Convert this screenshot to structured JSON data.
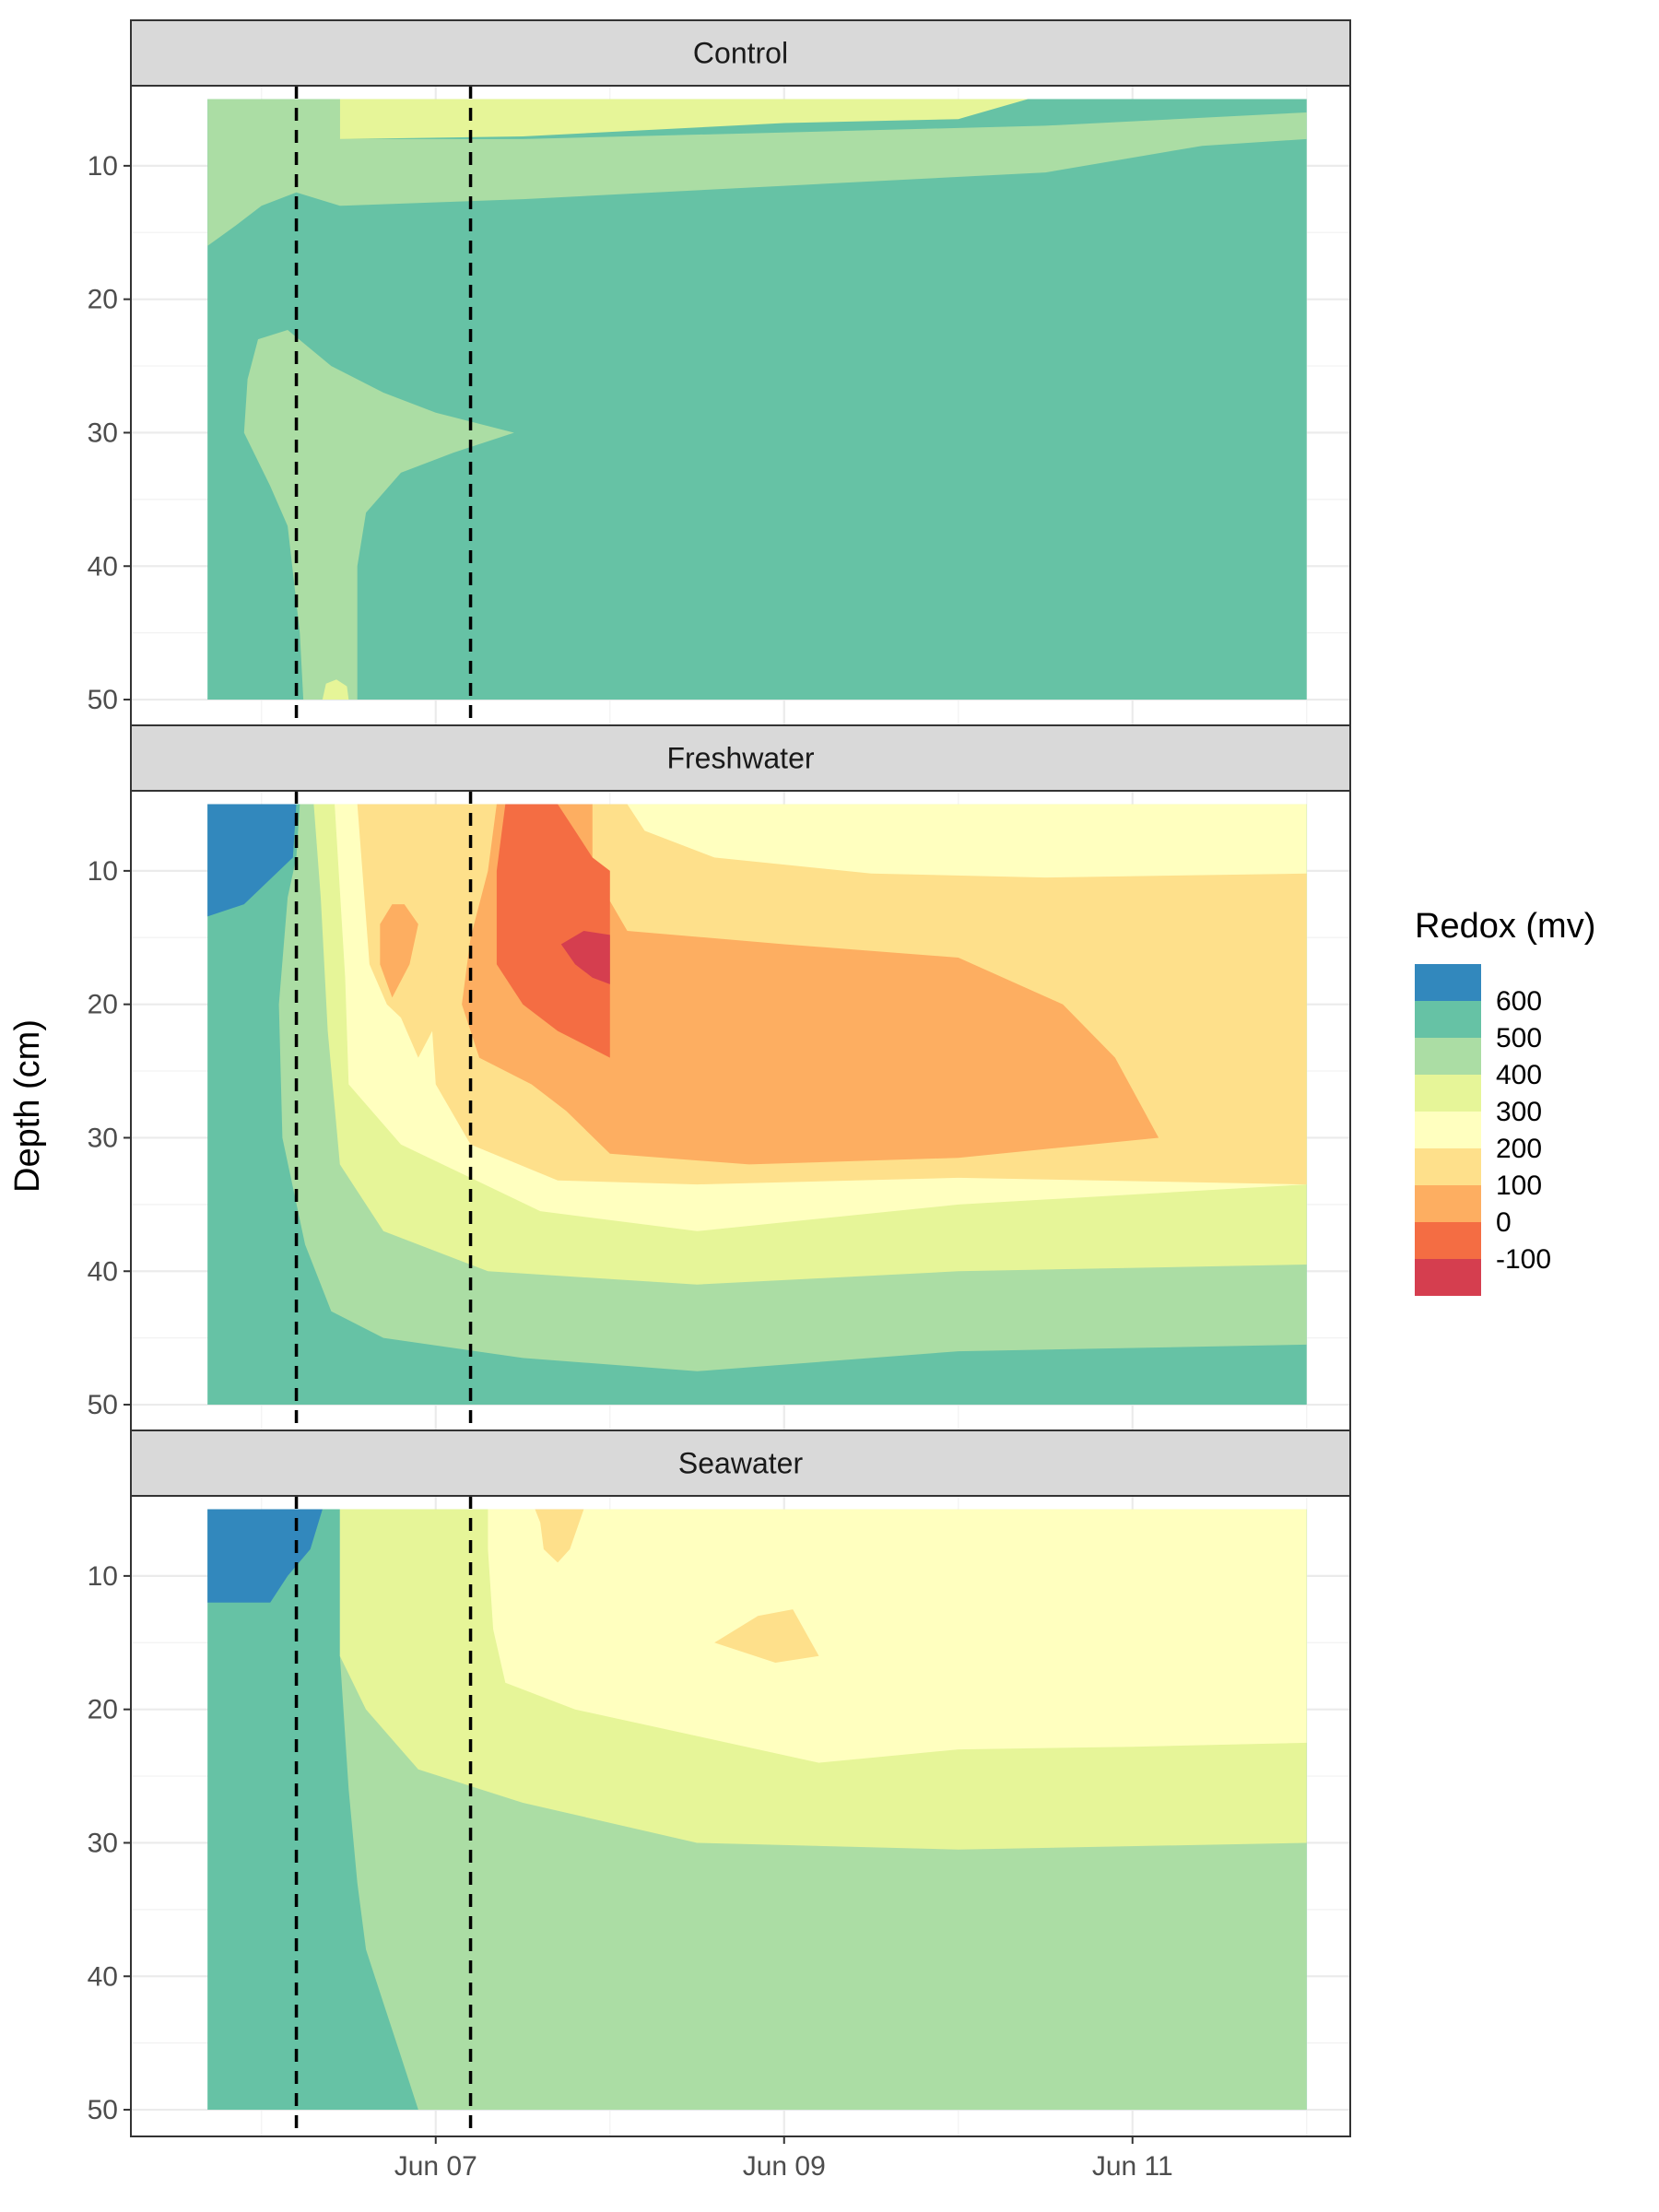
{
  "chart_data": {
    "type": "filled-contour",
    "ylabel": "Depth (cm)",
    "xlabel": "",
    "x_domain_days": [
      -1.75,
      5.25
    ],
    "x_ticks": [
      {
        "label": "Jun 07",
        "day": 0
      },
      {
        "label": "Jun 09",
        "day": 2
      },
      {
        "label": "Jun 11",
        "day": 4
      }
    ],
    "ylim": [
      4,
      52
    ],
    "y_reversed": true,
    "y_ticks": [
      10,
      20,
      30,
      40,
      50
    ],
    "data_x_range_days": [
      -1.31,
      5.0
    ],
    "data_y_range_cm": [
      5,
      50
    ],
    "vlines_days": [
      -0.8,
      0.2
    ],
    "vline_style": "dashed",
    "legend": {
      "title": "Redox (mv)",
      "position": "right",
      "labels": [
        "600",
        "500",
        "400",
        "300",
        "200",
        "100",
        "0",
        "-100"
      ],
      "colors": [
        "#3288bd",
        "#66c2a5",
        "#abdda4",
        "#e6f598",
        "#ffffbf",
        "#fee08b",
        "#fdae61",
        "#f46d43",
        "#d53e4f"
      ]
    },
    "panels": [
      {
        "label": "Control",
        "background": "#66c2a5",
        "regions": [
          {
            "color": "#abdda4",
            "points": [
              [
                -1.31,
                5
              ],
              [
                -0.55,
                5
              ],
              [
                -0.55,
                8
              ],
              [
                0.5,
                8
              ],
              [
                2,
                7.5
              ],
              [
                3.5,
                7
              ],
              [
                5,
                6
              ],
              [
                5,
                8
              ],
              [
                4.4,
                8.5
              ],
              [
                3.5,
                10.5
              ],
              [
                2,
                11.5
              ],
              [
                0.5,
                12.5
              ],
              [
                -0.55,
                13
              ],
              [
                -0.8,
                12
              ],
              [
                -1.0,
                13
              ],
              [
                -1.15,
                14.5
              ],
              [
                -1.31,
                16
              ]
            ]
          },
          {
            "color": "#e6f598",
            "points": [
              [
                -0.55,
                5
              ],
              [
                3.4,
                5
              ],
              [
                3.0,
                6.5
              ],
              [
                2,
                6.8
              ],
              [
                0.5,
                7.8
              ],
              [
                -0.55,
                8
              ]
            ]
          },
          {
            "color": "#abdda4",
            "points": [
              [
                -1.02,
                23
              ],
              [
                -0.85,
                22.3
              ],
              [
                -0.6,
                25
              ],
              [
                -0.3,
                27
              ],
              [
                0,
                28.5
              ],
              [
                0.45,
                30
              ],
              [
                0.1,
                31.5
              ],
              [
                -0.2,
                33
              ],
              [
                -0.4,
                36
              ],
              [
                -0.45,
                40
              ],
              [
                -0.45,
                50
              ],
              [
                -0.76,
                50
              ],
              [
                -0.78,
                45
              ],
              [
                -0.85,
                37
              ],
              [
                -0.95,
                34
              ],
              [
                -1.1,
                30
              ],
              [
                -1.08,
                26
              ]
            ]
          },
          {
            "color": "#e6f598",
            "points": [
              [
                -0.65,
                50
              ],
              [
                -0.63,
                48.8
              ],
              [
                -0.57,
                48.5
              ],
              [
                -0.51,
                49
              ],
              [
                -0.5,
                50
              ]
            ]
          }
        ]
      },
      {
        "label": "Freshwater",
        "background": "#66c2a5",
        "regions": [
          {
            "color": "#3288bd",
            "points": [
              [
                -1.33,
                5
              ],
              [
                -0.8,
                5
              ],
              [
                -0.82,
                9
              ],
              [
                -0.98,
                11
              ],
              [
                -1.1,
                12.5
              ],
              [
                -1.33,
                13.5
              ]
            ]
          },
          {
            "color": "#abdda4",
            "points": [
              [
                -0.78,
                5
              ],
              [
                5,
                5
              ],
              [
                5,
                45.5
              ],
              [
                3,
                46
              ],
              [
                1.5,
                47.5
              ],
              [
                0.5,
                46.5
              ],
              [
                -0.3,
                45
              ],
              [
                -0.6,
                43
              ],
              [
                -0.75,
                38
              ],
              [
                -0.88,
                30
              ],
              [
                -0.9,
                20
              ],
              [
                -0.85,
                12
              ],
              [
                -0.8,
                9
              ]
            ]
          },
          {
            "color": "#e6f598",
            "points": [
              [
                -0.7,
                5
              ],
              [
                5,
                5
              ],
              [
                5,
                39.5
              ],
              [
                3,
                40
              ],
              [
                1.5,
                41
              ],
              [
                0.3,
                40
              ],
              [
                -0.3,
                37
              ],
              [
                -0.55,
                32
              ],
              [
                -0.62,
                22
              ],
              [
                -0.66,
                12
              ]
            ]
          },
          {
            "color": "#ffffbf",
            "points": [
              [
                -0.58,
                5
              ],
              [
                5,
                5
              ],
              [
                5,
                33.5
              ],
              [
                3,
                35
              ],
              [
                1.5,
                37
              ],
              [
                0.6,
                35.5
              ],
              [
                0.2,
                33
              ],
              [
                -0.2,
                30.5
              ],
              [
                -0.5,
                26
              ],
              [
                -0.52,
                18
              ]
            ]
          },
          {
            "color": "#fee08b",
            "points": [
              [
                -0.45,
                5
              ],
              [
                0.2,
                5
              ],
              [
                0.6,
                5
              ],
              [
                0.5,
                7.5
              ],
              [
                0.35,
                11
              ],
              [
                0.25,
                14
              ],
              [
                0.05,
                18
              ],
              [
                -0.02,
                22
              ],
              [
                -0.1,
                24
              ],
              [
                -0.15,
                22.5
              ],
              [
                -0.2,
                21
              ],
              [
                -0.28,
                20
              ],
              [
                -0.38,
                17
              ]
            ]
          },
          {
            "color": "#fee08b",
            "points": [
              [
                0.2,
                5
              ],
              [
                1.1,
                5
              ],
              [
                1.2,
                7
              ],
              [
                1.6,
                9
              ],
              [
                2.5,
                10.2
              ],
              [
                3.5,
                10.5
              ],
              [
                5,
                10.2
              ],
              [
                5,
                33.5
              ],
              [
                3,
                33
              ],
              [
                1.5,
                33.5
              ],
              [
                0.7,
                33.2
              ],
              [
                0.2,
                30.5
              ],
              [
                0.0,
                26
              ],
              [
                -0.03,
                20
              ],
              [
                0.05,
                15
              ],
              [
                0.15,
                10
              ]
            ]
          },
          {
            "color": "#fdae61",
            "points": [
              [
                -0.18,
                12.5
              ],
              [
                -0.1,
                14
              ],
              [
                -0.15,
                17
              ],
              [
                -0.25,
                19.5
              ],
              [
                -0.32,
                17
              ],
              [
                -0.32,
                14
              ],
              [
                -0.25,
                12.5
              ]
            ]
          },
          {
            "color": "#fdae61",
            "points": [
              [
                0.35,
                5
              ],
              [
                0.9,
                5
              ],
              [
                0.9,
                10
              ],
              [
                1.1,
                14.5
              ],
              [
                2,
                15.5
              ],
              [
                3,
                16.5
              ],
              [
                3.6,
                20
              ],
              [
                3.9,
                24
              ],
              [
                4.15,
                30
              ],
              [
                3,
                31.5
              ],
              [
                1.8,
                32
              ],
              [
                1.0,
                31.2
              ],
              [
                0.75,
                28
              ],
              [
                0.55,
                26
              ],
              [
                0.25,
                24
              ],
              [
                0.15,
                20
              ],
              [
                0.2,
                15
              ],
              [
                0.3,
                10
              ]
            ]
          },
          {
            "color": "#f46d43",
            "points": [
              [
                0.4,
                5
              ],
              [
                0.7,
                5
              ],
              [
                0.8,
                7
              ],
              [
                0.9,
                9
              ],
              [
                1.0,
                10
              ],
              [
                1.0,
                15
              ],
              [
                1.0,
                19
              ],
              [
                1.0,
                24
              ],
              [
                0.7,
                22
              ],
              [
                0.5,
                20
              ],
              [
                0.35,
                17
              ],
              [
                0.35,
                10
              ]
            ]
          },
          {
            "color": "#d53e4f",
            "points": [
              [
                0.72,
                15.5
              ],
              [
                0.85,
                14.5
              ],
              [
                1.0,
                14.8
              ],
              [
                1.0,
                18.5
              ],
              [
                0.9,
                18
              ],
              [
                0.8,
                17
              ]
            ]
          }
        ]
      },
      {
        "label": "Seawater",
        "background": "#66c2a5",
        "regions": [
          {
            "color": "#3288bd",
            "points": [
              [
                -1.33,
                5
              ],
              [
                -0.65,
                5
              ],
              [
                -0.72,
                8
              ],
              [
                -0.85,
                10
              ],
              [
                -0.95,
                12
              ],
              [
                -1.33,
                12
              ]
            ]
          },
          {
            "color": "#abdda4",
            "points": [
              [
                -0.55,
                5
              ],
              [
                5,
                5
              ],
              [
                5,
                50
              ],
              [
                -0.1,
                50
              ],
              [
                -0.2,
                46
              ],
              [
                -0.3,
                42
              ],
              [
                -0.4,
                38
              ],
              [
                -0.45,
                33
              ],
              [
                -0.5,
                26
              ],
              [
                -0.55,
                16
              ]
            ]
          },
          {
            "color": "#e6f598",
            "points": [
              [
                -0.55,
                5
              ],
              [
                5,
                5
              ],
              [
                5,
                30
              ],
              [
                3,
                30.5
              ],
              [
                1.5,
                30
              ],
              [
                0.5,
                27
              ],
              [
                -0.1,
                24.5
              ],
              [
                -0.4,
                20
              ],
              [
                -0.55,
                16
              ]
            ]
          },
          {
            "color": "#ffffbf",
            "points": [
              [
                0.3,
                5
              ],
              [
                5,
                5
              ],
              [
                5,
                22.5
              ],
              [
                4.0,
                22.8
              ],
              [
                3.0,
                23
              ],
              [
                2.2,
                24
              ],
              [
                1.5,
                22
              ],
              [
                0.8,
                20
              ],
              [
                0.4,
                18
              ],
              [
                0.33,
                14
              ],
              [
                0.3,
                8
              ]
            ]
          },
          {
            "color": "#fee08b",
            "points": [
              [
                0.57,
                5
              ],
              [
                0.85,
                5
              ],
              [
                0.77,
                8
              ],
              [
                0.7,
                9
              ],
              [
                0.62,
                8
              ],
              [
                0.6,
                6
              ]
            ]
          },
          {
            "color": "#fee08b",
            "points": [
              [
                1.6,
                15
              ],
              [
                1.85,
                13
              ],
              [
                2.05,
                12.5
              ],
              [
                2.2,
                16
              ],
              [
                1.95,
                16.5
              ]
            ]
          }
        ]
      }
    ]
  }
}
